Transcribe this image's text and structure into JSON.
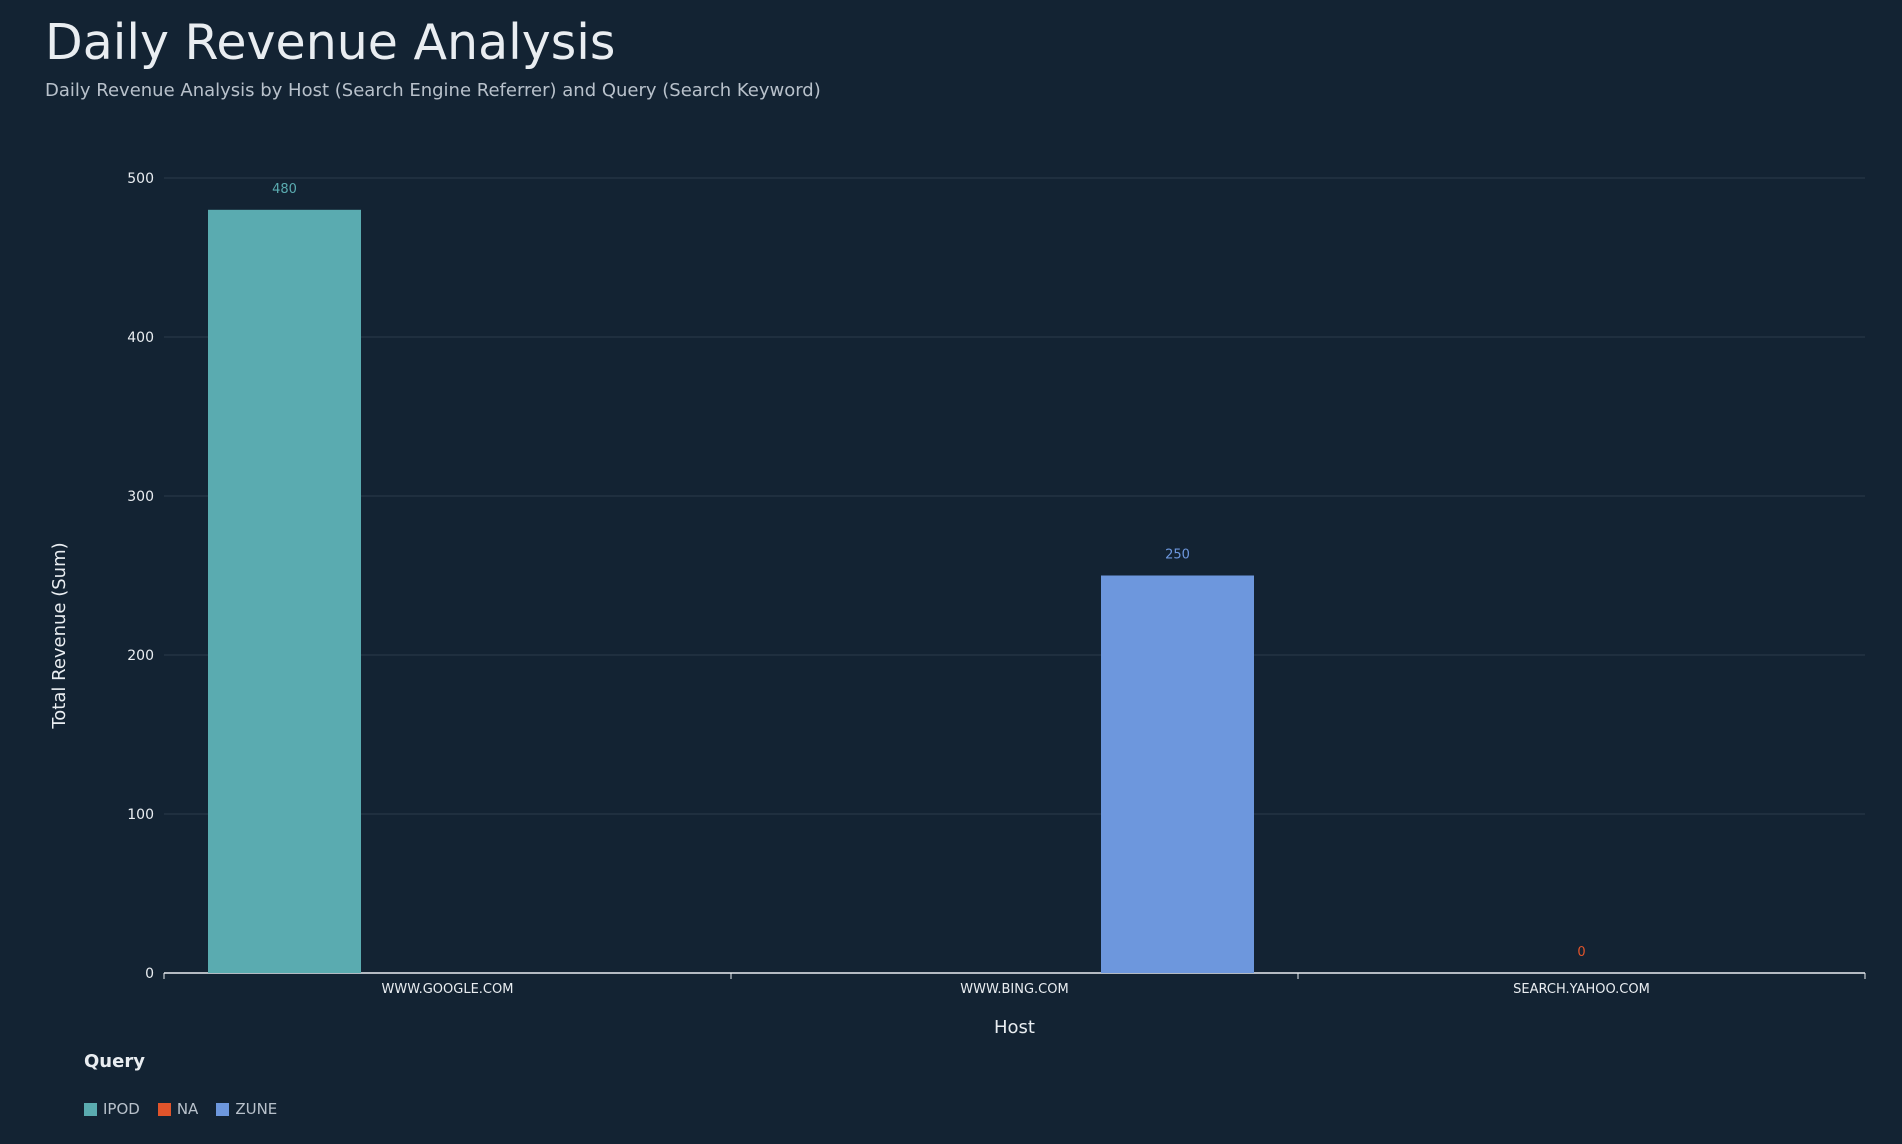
{
  "chart_data": {
    "type": "bar",
    "title": "Daily Revenue Analysis",
    "subtitle": "Daily Revenue Analysis by Host (Search Engine Referrer) and Query (Search Keyword)",
    "xlabel": "Host",
    "ylabel": "Total Revenue (Sum)",
    "ylim": [
      0,
      500
    ],
    "yticks": [
      0,
      100,
      200,
      300,
      400,
      500
    ],
    "categories": [
      "WWW.GOOGLE.COM",
      "WWW.BING.COM",
      "SEARCH.YAHOO.COM"
    ],
    "legend_title": "Query",
    "legend_position": "bottom-left",
    "grid": true,
    "series": [
      {
        "name": "IPOD",
        "color": "#5aabb0",
        "values": [
          480,
          null,
          null
        ]
      },
      {
        "name": "NA",
        "color": "#e0542b",
        "values": [
          null,
          null,
          0
        ]
      },
      {
        "name": "ZUNE",
        "color": "#6d97dd",
        "values": [
          null,
          250,
          null
        ]
      }
    ]
  }
}
